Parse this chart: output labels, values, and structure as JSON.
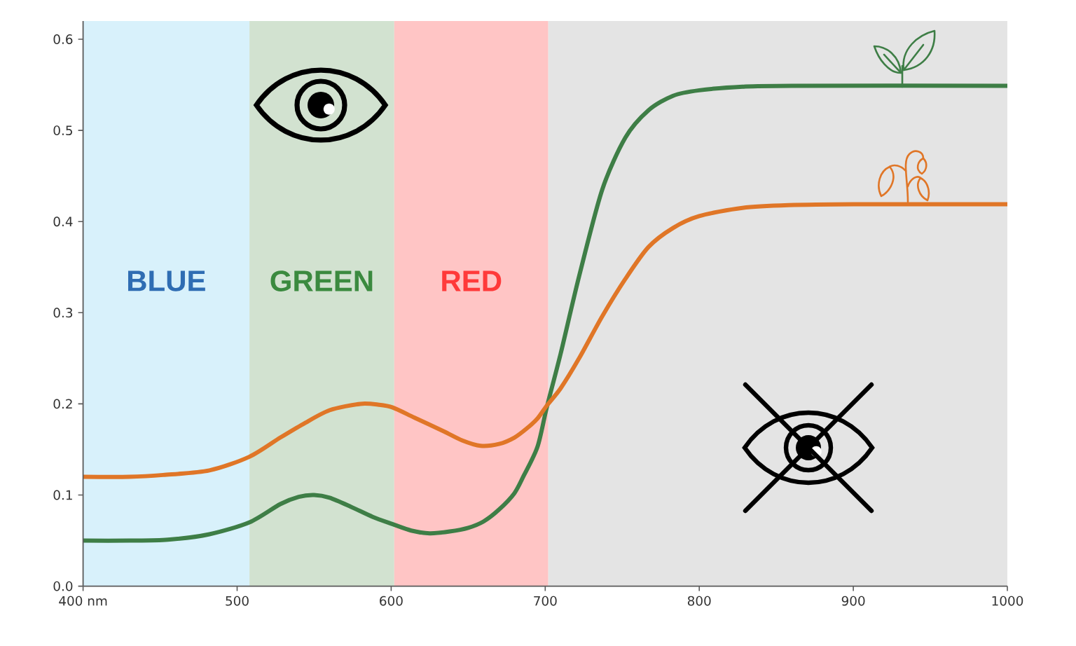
{
  "chart_data": {
    "type": "line",
    "xlim": [
      400,
      1000
    ],
    "ylim": [
      0,
      0.62
    ],
    "xticks": [
      {
        "value": 400,
        "label": "400 nm"
      },
      500,
      600,
      700,
      800,
      900,
      1000
    ],
    "yticks": [
      {
        "value": 0,
        "label": "0.0"
      },
      0.1,
      0.2,
      0.3,
      0.4,
      0.5,
      0.6
    ],
    "marker": "none",
    "line_style": "solid",
    "bands": [
      {
        "axis": "x",
        "from": 400,
        "to": 508,
        "label": "BLUE",
        "color": "#d8f1fb"
      },
      {
        "axis": "x",
        "from": 508,
        "to": 602,
        "label": "GREEN",
        "color": "#d2e2d0"
      },
      {
        "axis": "x",
        "from": 602,
        "to": 702,
        "label": "RED",
        "color": "#ffc5c5"
      },
      {
        "axis": "x",
        "from": 702,
        "to": 1000,
        "color": "#e4e4e4"
      }
    ],
    "series": [
      {
        "color": "#3e7e46",
        "x": [
          400,
          430,
          455,
          482,
          508,
          528,
          540,
          550,
          560,
          574,
          588,
          601,
          613,
          625,
          638,
          650,
          660,
          670,
          680,
          686,
          695,
          701,
          710,
          722,
          737,
          752,
          767,
          783,
          800,
          828,
          860,
          1000
        ],
        "values": [
          0.05,
          0.05,
          0.051,
          0.057,
          0.07,
          0.09,
          0.098,
          0.1,
          0.097,
          0.087,
          0.076,
          0.068,
          0.061,
          0.058,
          0.06,
          0.064,
          0.071,
          0.084,
          0.102,
          0.121,
          0.153,
          0.196,
          0.255,
          0.34,
          0.435,
          0.492,
          0.522,
          0.538,
          0.544,
          0.548,
          0.549,
          0.549
        ]
      },
      {
        "color": "#e07627",
        "x": [
          400,
          430,
          452,
          482,
          508,
          528,
          543,
          560,
          580,
          592,
          601,
          615,
          634,
          646,
          658,
          670,
          680,
          688,
          695,
          701,
          710,
          722,
          737,
          752,
          767,
          783,
          800,
          828,
          858,
          900,
          1000
        ],
        "values": [
          0.12,
          0.12,
          0.122,
          0.127,
          0.142,
          0.163,
          0.178,
          0.193,
          0.2,
          0.199,
          0.196,
          0.185,
          0.17,
          0.16,
          0.154,
          0.156,
          0.163,
          0.173,
          0.184,
          0.198,
          0.217,
          0.25,
          0.296,
          0.337,
          0.372,
          0.393,
          0.406,
          0.415,
          0.418,
          0.419,
          0.419
        ]
      }
    ]
  }
}
